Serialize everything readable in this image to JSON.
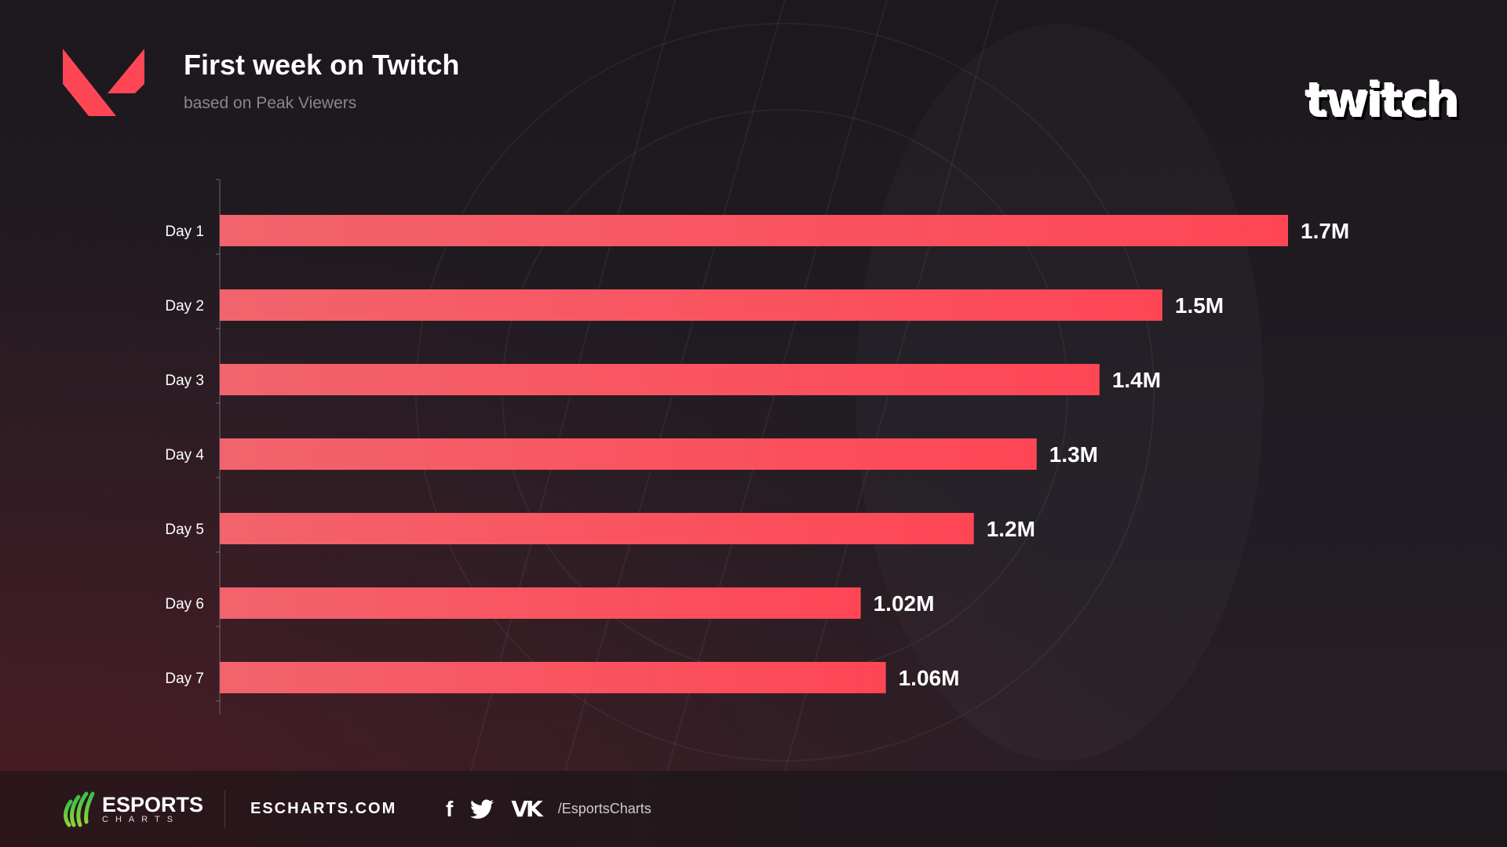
{
  "header": {
    "title": "First week on Twitch",
    "subtitle": "based on Peak Viewers",
    "platform_logo": "twitch"
  },
  "colors": {
    "bar_start": "#f2646d",
    "bar_end": "#ff4655",
    "accent": "#ff4655",
    "esports_green": "#6fd63a"
  },
  "chart_data": {
    "type": "bar",
    "orientation": "horizontal",
    "title": "First week on Twitch",
    "subtitle": "based on Peak Viewers",
    "categories": [
      "Day 1",
      "Day 2",
      "Day 3",
      "Day 4",
      "Day 5",
      "Day 6",
      "Day 7"
    ],
    "values": [
      1.7,
      1.5,
      1.4,
      1.3,
      1.2,
      1.02,
      1.06
    ],
    "value_labels": [
      "1.7M",
      "1.5M",
      "1.4M",
      "1.3M",
      "1.2M",
      "1.02M",
      "1.06M"
    ],
    "unit": "M",
    "xlim": [
      0,
      1.7
    ],
    "grid": false
  },
  "footer": {
    "brand_top": "ESPORTS",
    "brand_bottom": "CHARTS",
    "site": "ESCHARTS.COM",
    "social_handle": "/EsportsCharts",
    "social_icons": [
      "facebook-icon",
      "twitter-icon",
      "vk-icon"
    ]
  }
}
